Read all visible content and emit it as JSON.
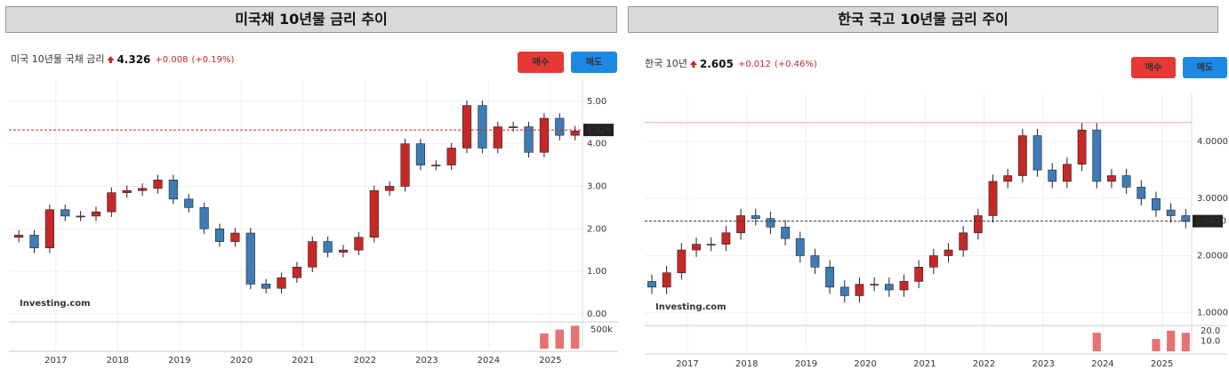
{
  "chart_data": [
    {
      "type": "candlestick",
      "title": "미국채 10년물 금리 추이",
      "quote": {
        "name": "미국 10년물 국채 금리",
        "last": "4.326",
        "change": "+0.008",
        "change_pct": "(+0.19%)"
      },
      "buttons": [
        "매수",
        "매도"
      ],
      "watermark": "Investing.com",
      "up_color": "#c62828",
      "down_color": "#3f7cb5",
      "x": [
        2016.4,
        2016.65,
        2016.9,
        2017.15,
        2017.4,
        2017.65,
        2017.9,
        2018.15,
        2018.4,
        2018.65,
        2018.9,
        2019.15,
        2019.4,
        2019.65,
        2019.9,
        2020.15,
        2020.4,
        2020.65,
        2020.9,
        2021.15,
        2021.4,
        2021.65,
        2021.9,
        2022.15,
        2022.4,
        2022.65,
        2022.9,
        2023.15,
        2023.4,
        2023.65,
        2023.9,
        2024.15,
        2024.4,
        2024.65,
        2024.9,
        2025.15,
        2025.4
      ],
      "open": [
        1.8,
        1.85,
        1.55,
        2.45,
        2.3,
        2.3,
        2.4,
        2.85,
        2.9,
        2.95,
        3.15,
        2.7,
        2.5,
        2.0,
        1.7,
        1.9,
        0.7,
        0.6,
        0.85,
        1.1,
        1.7,
        1.45,
        1.5,
        1.8,
        2.9,
        3.0,
        4.0,
        3.5,
        3.5,
        3.9,
        4.9,
        3.9,
        4.4,
        4.4,
        3.8,
        4.6,
        4.2
      ],
      "high": [
        1.97,
        1.97,
        2.57,
        2.57,
        2.42,
        2.52,
        2.97,
        3.02,
        3.07,
        3.27,
        3.27,
        2.82,
        2.62,
        2.12,
        2.02,
        2.02,
        0.82,
        0.97,
        1.22,
        1.82,
        1.82,
        1.62,
        1.92,
        3.02,
        3.12,
        4.12,
        4.12,
        3.62,
        4.02,
        5.02,
        5.02,
        4.52,
        4.52,
        4.52,
        4.72,
        4.72,
        4.42
      ],
      "low": [
        1.68,
        1.43,
        1.43,
        2.18,
        2.18,
        2.18,
        2.28,
        2.73,
        2.78,
        2.83,
        2.58,
        2.38,
        1.88,
        1.58,
        1.58,
        0.58,
        0.48,
        0.48,
        0.73,
        0.98,
        1.33,
        1.33,
        1.38,
        1.68,
        2.78,
        2.88,
        3.38,
        3.38,
        3.38,
        3.78,
        3.78,
        3.78,
        4.28,
        3.68,
        3.68,
        4.08,
        4.08
      ],
      "close": [
        1.85,
        1.55,
        2.45,
        2.3,
        2.3,
        2.4,
        2.85,
        2.9,
        2.95,
        3.15,
        2.7,
        2.5,
        2.0,
        1.7,
        1.9,
        0.7,
        0.6,
        0.85,
        1.1,
        1.7,
        1.45,
        1.5,
        1.8,
        2.9,
        3.0,
        4.0,
        3.5,
        3.5,
        3.9,
        4.9,
        3.9,
        4.4,
        4.4,
        3.8,
        4.6,
        4.2,
        4.3
      ],
      "last_value": {
        "value": 4.326,
        "label": "4.326"
      },
      "last_line_color": "#c62828",
      "xlim": [
        2016.24,
        2025.52
      ],
      "xticks": [
        2017,
        2018,
        2019,
        2020,
        2021,
        2022,
        2023,
        2024,
        2025
      ],
      "ylim": [
        -0.15,
        5.5
      ],
      "yticks": [
        {
          "value": 0,
          "label": "0.00"
        },
        {
          "value": 1,
          "label": "1.00"
        },
        {
          "value": 2,
          "label": "2.00"
        },
        {
          "value": 3,
          "label": "3.00"
        },
        {
          "value": 4,
          "label": "4.00"
        },
        {
          "value": 5,
          "label": "5.00"
        }
      ],
      "volume": {
        "x": [
          2024.9,
          2025.15,
          2025.4
        ],
        "values": [
          400000,
          500000,
          600000
        ],
        "color": "#e57373",
        "ylim": [
          0,
          700000
        ],
        "yticks": [
          {
            "value": 500000,
            "label": "500k"
          }
        ]
      }
    },
    {
      "type": "candlestick",
      "title": "한국 국고 10년물 금리 주이",
      "quote": {
        "name": "한국 10년",
        "last": "2.605",
        "change": "+0.012",
        "change_pct": "(+0.46%)"
      },
      "buttons": [
        "매수",
        "매도"
      ],
      "watermark": "Investing.com",
      "up_color": "#c62828",
      "down_color": "#3f7cb5",
      "x": [
        2016.4,
        2016.65,
        2016.9,
        2017.15,
        2017.4,
        2017.65,
        2017.9,
        2018.15,
        2018.4,
        2018.65,
        2018.9,
        2019.15,
        2019.4,
        2019.65,
        2019.9,
        2020.15,
        2020.4,
        2020.65,
        2020.9,
        2021.15,
        2021.4,
        2021.65,
        2021.9,
        2022.15,
        2022.4,
        2022.65,
        2022.9,
        2023.15,
        2023.4,
        2023.65,
        2023.9,
        2024.15,
        2024.4,
        2024.65,
        2024.9,
        2025.15,
        2025.4
      ],
      "open": [
        1.55,
        1.45,
        1.7,
        2.1,
        2.2,
        2.2,
        2.4,
        2.7,
        2.65,
        2.5,
        2.3,
        2.0,
        1.8,
        1.45,
        1.3,
        1.5,
        1.5,
        1.4,
        1.55,
        1.8,
        2.0,
        2.1,
        2.4,
        2.7,
        3.3,
        3.4,
        4.1,
        3.5,
        3.3,
        3.6,
        4.2,
        3.3,
        3.4,
        3.2,
        3.0,
        2.8,
        2.7
      ],
      "high": [
        1.67,
        1.82,
        2.22,
        2.32,
        2.32,
        2.52,
        2.82,
        2.82,
        2.77,
        2.62,
        2.42,
        2.12,
        1.92,
        1.57,
        1.62,
        1.62,
        1.62,
        1.67,
        1.92,
        2.12,
        2.22,
        2.52,
        2.82,
        3.42,
        3.52,
        4.22,
        4.22,
        3.62,
        3.72,
        4.32,
        4.32,
        3.52,
        3.52,
        3.32,
        3.12,
        2.92,
        2.82
      ],
      "low": [
        1.33,
        1.33,
        1.58,
        1.98,
        2.08,
        2.08,
        2.28,
        2.53,
        2.38,
        2.18,
        1.88,
        1.68,
        1.33,
        1.18,
        1.18,
        1.38,
        1.28,
        1.28,
        1.43,
        1.68,
        1.88,
        1.98,
        2.28,
        2.58,
        3.18,
        3.28,
        3.38,
        3.18,
        3.18,
        3.48,
        3.18,
        3.18,
        3.08,
        2.88,
        2.68,
        2.58,
        2.48
      ],
      "close": [
        1.45,
        1.7,
        2.1,
        2.2,
        2.2,
        2.4,
        2.7,
        2.65,
        2.5,
        2.3,
        2.0,
        1.8,
        1.45,
        1.3,
        1.5,
        1.5,
        1.4,
        1.55,
        1.8,
        2.0,
        2.1,
        2.4,
        2.7,
        3.3,
        3.4,
        4.1,
        3.5,
        3.3,
        3.6,
        4.2,
        3.3,
        3.4,
        3.2,
        3.0,
        2.8,
        2.7,
        2.6
      ],
      "last_value": {
        "value": 2.605,
        "label": "2.6050"
      },
      "last_line_color": "#333333",
      "hline": 4.33,
      "hline_color": "#f4a6a6",
      "xlim": [
        2016.28,
        2025.5
      ],
      "xticks": [
        2017,
        2018,
        2019,
        2020,
        2021,
        2022,
        2023,
        2024,
        2025
      ],
      "ylim": [
        0.84,
        4.84
      ],
      "yticks": [
        {
          "value": 1,
          "label": "1.0000"
        },
        {
          "value": 2,
          "label": "2.0000"
        },
        {
          "value": 3,
          "label": "3.0000"
        },
        {
          "value": 4,
          "label": "4.0000"
        }
      ],
      "volume": {
        "x": [
          2023.9,
          2024.9,
          2025.15,
          2025.4
        ],
        "values": [
          18,
          12,
          20,
          18
        ],
        "color": "#e57373",
        "ylim": [
          0,
          25
        ],
        "yticks": [
          {
            "value": 20,
            "label": "20.0"
          },
          {
            "value": 10,
            "label": "10.0"
          }
        ]
      }
    }
  ]
}
